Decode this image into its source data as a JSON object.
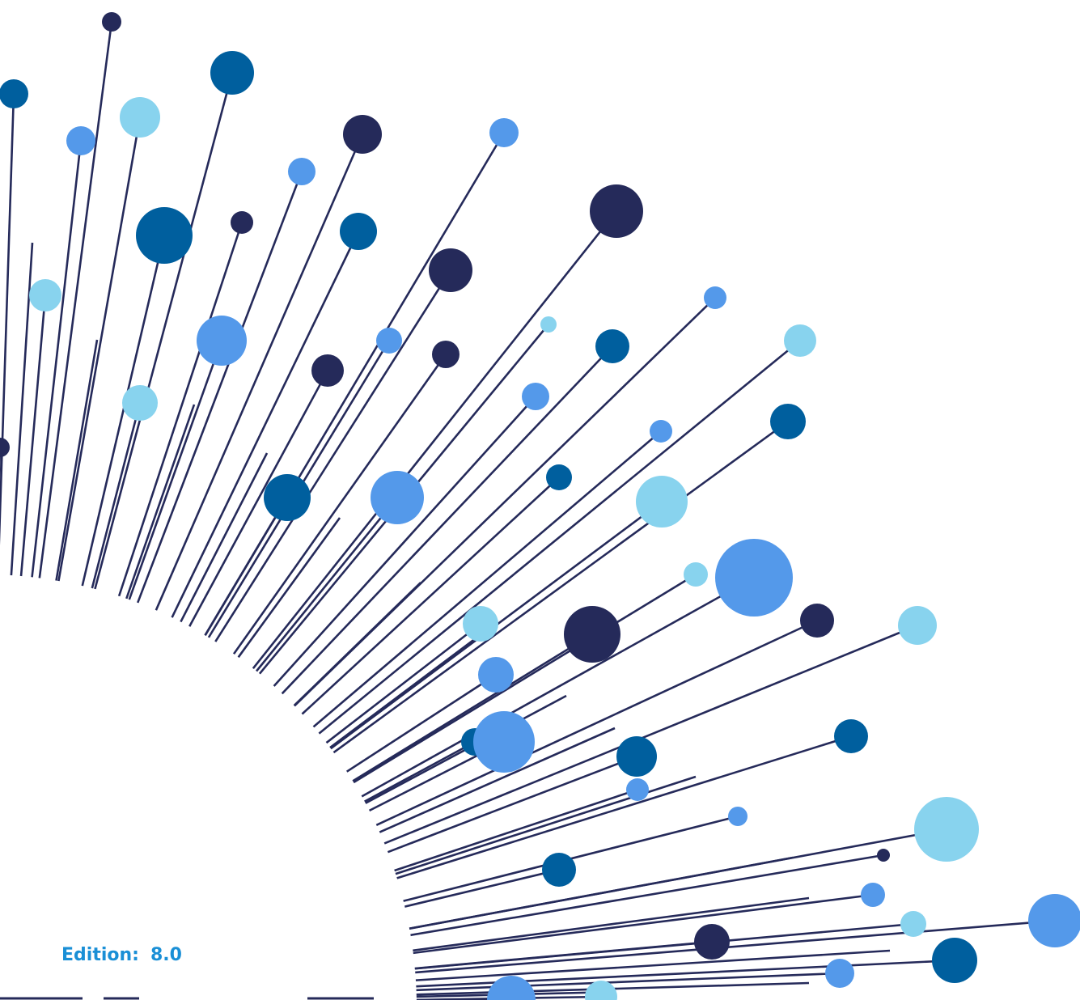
{
  "edition": {
    "label": "Edition:",
    "value": "8.0"
  }
}
